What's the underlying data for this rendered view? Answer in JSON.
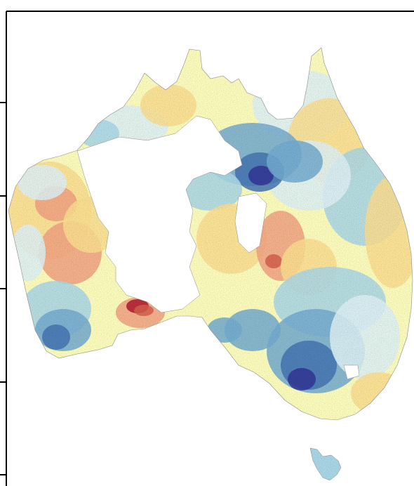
{
  "map": {
    "region": "Australia",
    "colors": {
      "dark_red": "#b2182b",
      "red": "#d6604d",
      "orange": "#f4a582",
      "yellow": "#fee090",
      "pale_yellow": "#ffffbf",
      "pale_blue": "#e0f3f8",
      "light_blue": "#abd9e9",
      "blue": "#74add1",
      "dark_blue": "#4575b4",
      "navy": "#313695",
      "outline": "#8c8c8c",
      "frame": "#000000",
      "background": "#ffffff"
    }
  }
}
